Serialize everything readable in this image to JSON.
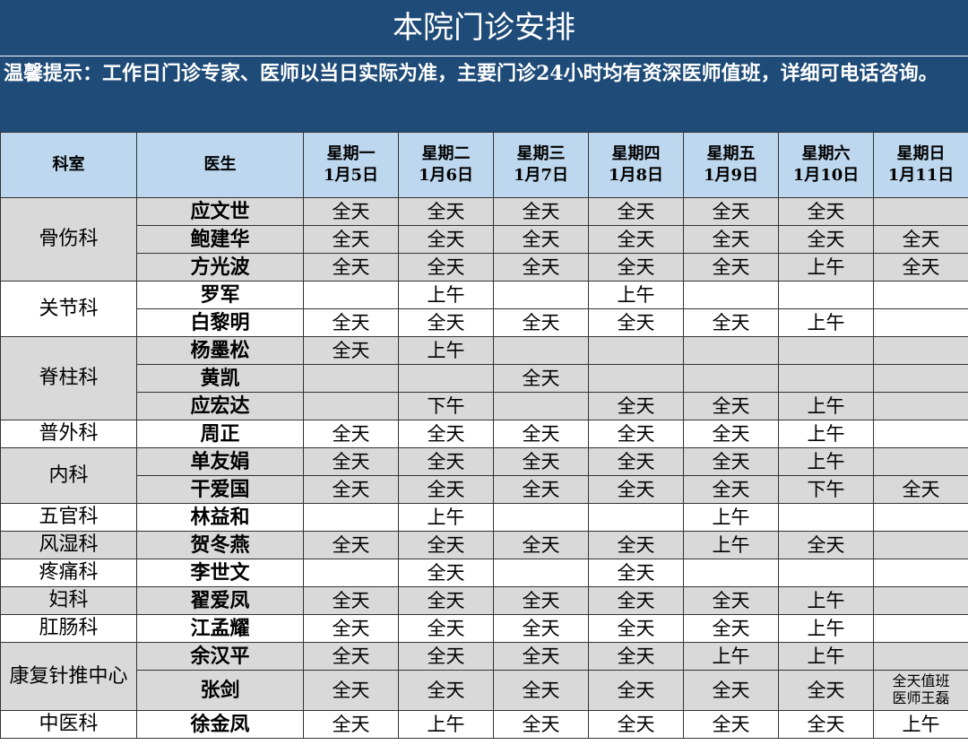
{
  "title": "本院门诊安排",
  "notice": "温馨提示：工作日门诊专家、医师以当日实际为准，主要门诊24小时均有资深医师值班，详细可电话咨询。",
  "table": {
    "header": {
      "department": "科室",
      "doctor": "医生",
      "days": [
        {
          "day": "星期一",
          "date": "1月5日"
        },
        {
          "day": "星期二",
          "date": "1月6日"
        },
        {
          "day": "星期三",
          "date": "1月7日"
        },
        {
          "day": "星期四",
          "date": "1月8日"
        },
        {
          "day": "星期五",
          "date": "1月9日"
        },
        {
          "day": "星期六",
          "date": "1月10日"
        },
        {
          "day": "星期日",
          "date": "1月11日"
        }
      ]
    },
    "departments": [
      {
        "name": "骨伤科",
        "doctors": [
          {
            "name": "应文世",
            "schedule": [
              "全天",
              "全天",
              "全天",
              "全天",
              "全天",
              "全天",
              null
            ]
          },
          {
            "name": "鲍建华",
            "schedule": [
              "全天",
              "全天",
              "全天",
              "全天",
              "全天",
              "全天",
              "全天"
            ]
          },
          {
            "name": "方光波",
            "schedule": [
              "全天",
              "全天",
              "全天",
              "全天",
              "全天",
              "上午",
              "全天"
            ]
          }
        ]
      },
      {
        "name": "关节科",
        "doctors": [
          {
            "name": "罗军",
            "schedule": [
              null,
              "上午",
              null,
              "上午",
              null,
              null,
              null
            ]
          },
          {
            "name": "白黎明",
            "schedule": [
              "全天",
              "全天",
              "全天",
              "全天",
              "全天",
              "上午",
              null
            ]
          }
        ]
      },
      {
        "name": "脊柱科",
        "doctors": [
          {
            "name": "杨墨松",
            "schedule": [
              "全天",
              "上午",
              null,
              null,
              null,
              null,
              null
            ]
          },
          {
            "name": "黄凯",
            "schedule": [
              null,
              null,
              "全天",
              null,
              null,
              null,
              null
            ]
          },
          {
            "name": "应宏达",
            "schedule": [
              null,
              "下午",
              null,
              "全天",
              "全天",
              "上午",
              null
            ]
          }
        ]
      },
      {
        "name": "普外科",
        "doctors": [
          {
            "name": "周正",
            "schedule": [
              "全天",
              "全天",
              "全天",
              "全天",
              "全天",
              "上午",
              null
            ]
          }
        ]
      },
      {
        "name": "内科",
        "doctors": [
          {
            "name": "单友娟",
            "schedule": [
              "全天",
              "全天",
              "全天",
              "全天",
              "全天",
              "上午",
              null
            ]
          },
          {
            "name": "干爱国",
            "schedule": [
              "全天",
              "全天",
              "全天",
              "全天",
              "全天",
              "下午",
              "全天"
            ]
          }
        ]
      },
      {
        "name": "五官科",
        "doctors": [
          {
            "name": "林益和",
            "schedule": [
              null,
              "上午",
              null,
              null,
              "上午",
              null,
              null
            ]
          }
        ]
      },
      {
        "name": "风湿科",
        "doctors": [
          {
            "name": "贺冬燕",
            "schedule": [
              "全天",
              "全天",
              "全天",
              "全天",
              "上午",
              "全天",
              null
            ]
          }
        ]
      },
      {
        "name": "疼痛科",
        "doctors": [
          {
            "name": "李世文",
            "schedule": [
              null,
              "全天",
              null,
              "全天",
              null,
              null,
              null
            ]
          }
        ]
      },
      {
        "name": "妇科",
        "doctors": [
          {
            "name": "翟爱凤",
            "schedule": [
              "全天",
              "全天",
              "全天",
              "全天",
              "全天",
              "上午",
              null
            ]
          }
        ]
      },
      {
        "name": "肛肠科",
        "doctors": [
          {
            "name": "江孟耀",
            "schedule": [
              "全天",
              "全天",
              "全天",
              "全天",
              "全天",
              "上午",
              null
            ]
          }
        ]
      },
      {
        "name": "康复针推中心",
        "doctors": [
          {
            "name": "余汉平",
            "schedule": [
              "全天",
              "全天",
              "全天",
              "全天",
              "上午",
              "上午",
              null
            ]
          },
          {
            "name": "张剑",
            "schedule": [
              "全天",
              "全天",
              "全天",
              "全天",
              "全天",
              "全天",
              "全天值班医师王磊"
            ]
          }
        ]
      },
      {
        "name": "中医科",
        "doctors": [
          {
            "name": "徐金凤",
            "schedule": [
              "全天",
              "上午",
              "全天",
              "全天",
              "全天",
              "全天",
              "上午"
            ]
          }
        ]
      }
    ]
  }
}
